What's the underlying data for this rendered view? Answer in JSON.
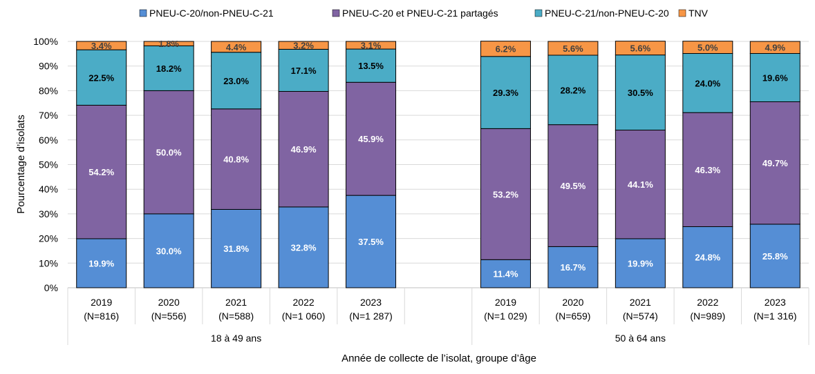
{
  "chart_data": {
    "type": "bar",
    "stacked": true,
    "ylabel": "Pourcentage d’isolats",
    "xlabel": "Année de collecte de l’isolat, groupe d’âge",
    "ylim": [
      0,
      100
    ],
    "yticks": [
      "0%",
      "10%",
      "20%",
      "30%",
      "40%",
      "50%",
      "60%",
      "70%",
      "80%",
      "90%",
      "100%"
    ],
    "legend_position": "top",
    "groups": [
      {
        "name": "18 à 49 ans",
        "categories": [
          {
            "year": "2019",
            "n": "(N=816)"
          },
          {
            "year": "2020",
            "n": "(N=556)"
          },
          {
            "year": "2021",
            "n": "(N=588)"
          },
          {
            "year": "2022",
            "n": "(N=1 060)"
          },
          {
            "year": "2023",
            "n": "(N=1 287)"
          }
        ]
      },
      {
        "name": "50 à 64 ans",
        "categories": [
          {
            "year": "2019",
            "n": "(N=1 029)"
          },
          {
            "year": "2020",
            "n": "(N=659)"
          },
          {
            "year": "2021",
            "n": "(N=574)"
          },
          {
            "year": "2022",
            "n": "(N=989)"
          },
          {
            "year": "2023",
            "n": "(N=1 316)"
          }
        ]
      }
    ],
    "series": [
      {
        "name": "PNEU-C-20/non-PNEU-C-21",
        "color": "#558ED5",
        "label_color": "#FFFFFF",
        "values": [
          19.9,
          30.0,
          31.8,
          32.8,
          37.5,
          11.4,
          16.7,
          19.9,
          24.8,
          25.8
        ],
        "labels": [
          "19.9%",
          "30.0%",
          "31.8%",
          "32.8%",
          "37.5%",
          "11.4%",
          "16.7%",
          "19.9%",
          "24.8%",
          "25.8%"
        ]
      },
      {
        "name": "PNEU-C-20 et PNEU-C-21 partagés",
        "color": "#8064A2",
        "label_color": "#FFFFFF",
        "values": [
          54.2,
          50.0,
          40.8,
          46.9,
          45.9,
          53.2,
          49.5,
          44.1,
          46.3,
          49.7
        ],
        "labels": [
          "54.2%",
          "50.0%",
          "40.8%",
          "46.9%",
          "45.9%",
          "53.2%",
          "49.5%",
          "44.1%",
          "46.3%",
          "49.7%"
        ]
      },
      {
        "name": "PNEU-C-21/non-PNEU-C-20",
        "color": "#4BACC6",
        "label_color": "#000000",
        "values": [
          22.5,
          18.2,
          23.0,
          17.1,
          13.5,
          29.3,
          28.2,
          30.5,
          24.0,
          19.6
        ],
        "labels": [
          "22.5%",
          "18.2%",
          "23.0%",
          "17.1%",
          "13.5%",
          "29.3%",
          "28.2%",
          "30.5%",
          "24.0%",
          "19.6%"
        ]
      },
      {
        "name": "TNV",
        "color": "#F79646",
        "label_color": "#404040",
        "values": [
          3.4,
          1.8,
          4.4,
          3.2,
          3.1,
          6.2,
          5.6,
          5.6,
          5.0,
          4.9
        ],
        "labels": [
          "3.4%",
          "1.8%",
          "4.4%",
          "3.2%",
          "3.1%",
          "6.2%",
          "5.6%",
          "5.6%",
          "5.0%",
          "4.9%"
        ]
      }
    ]
  }
}
